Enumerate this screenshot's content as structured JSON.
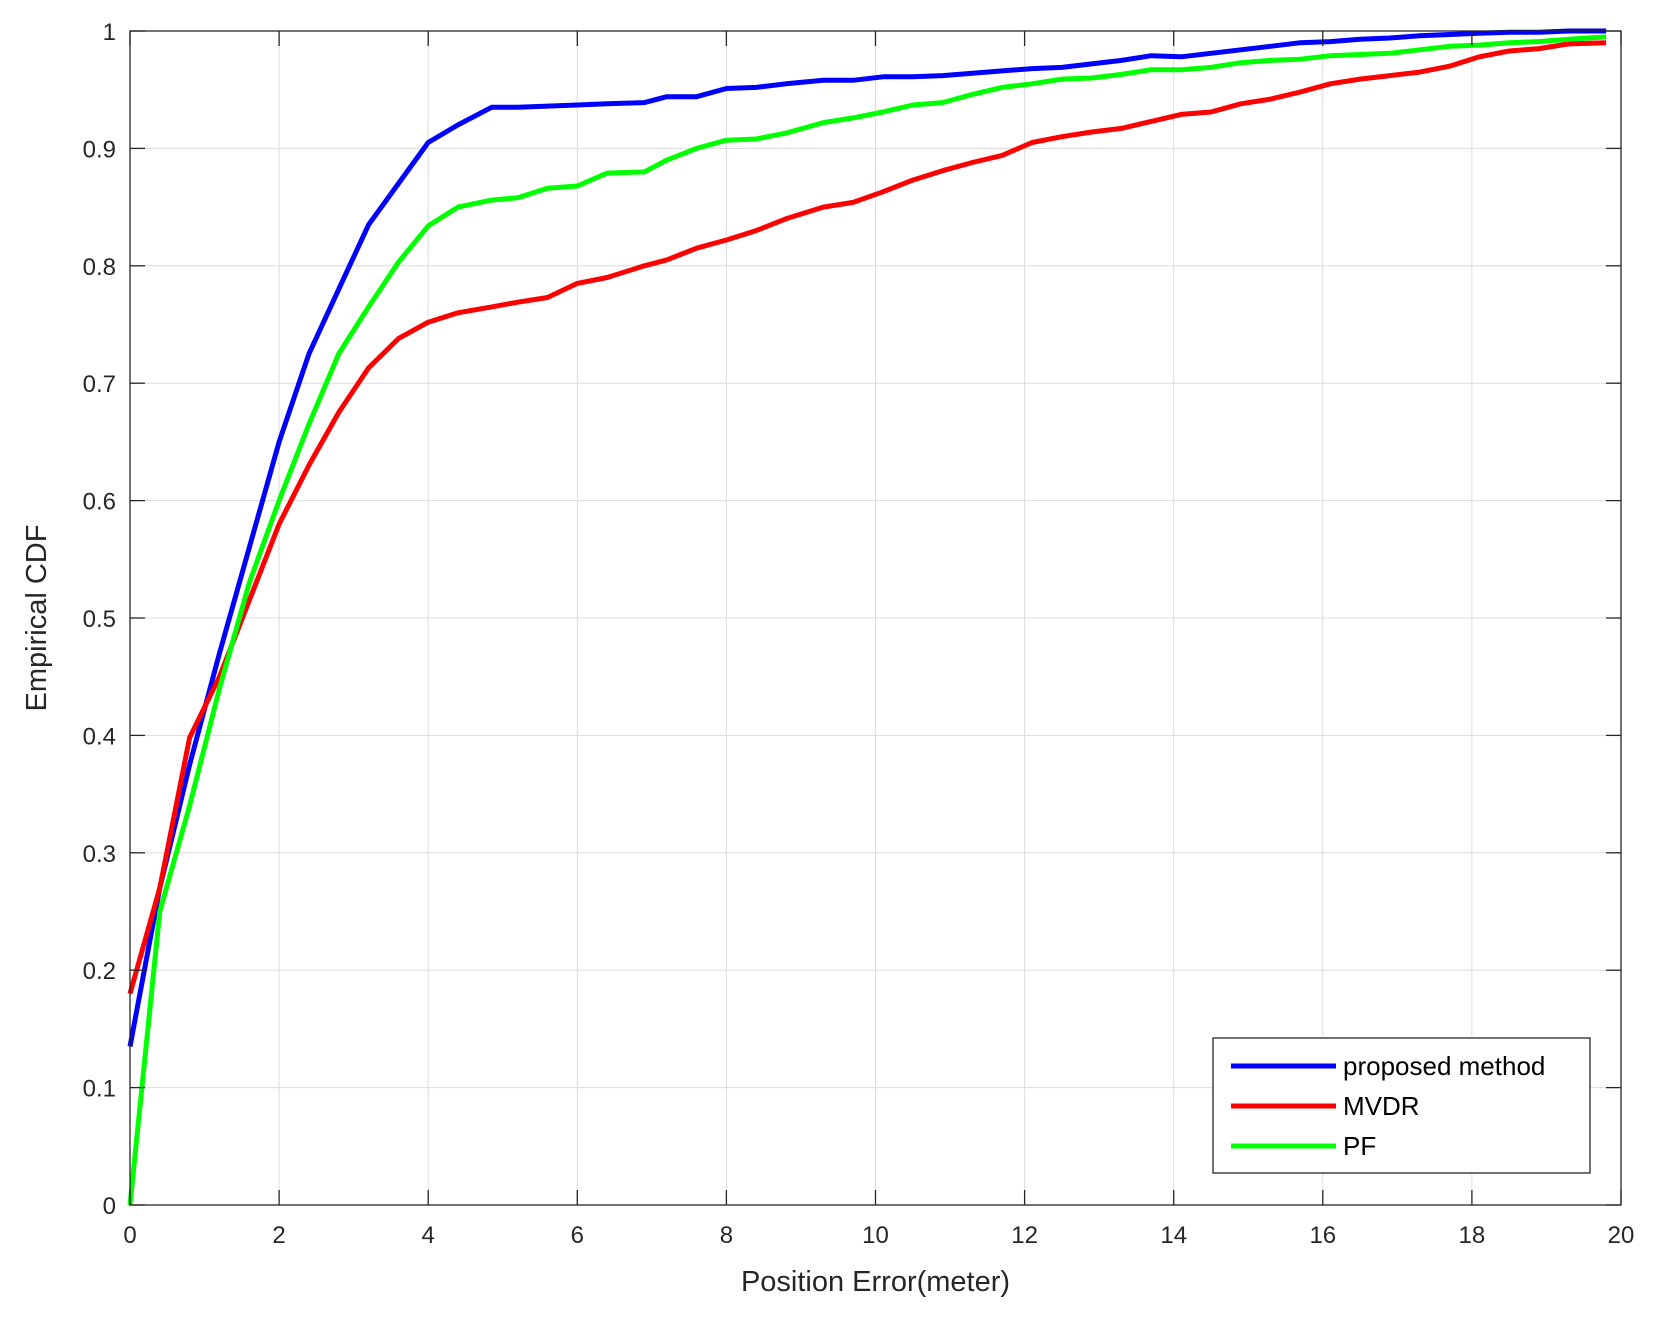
{
  "chart_data": {
    "type": "line",
    "xlabel": "Position Error(meter)",
    "ylabel": "Empirical CDF",
    "xlim": [
      0,
      20
    ],
    "ylim": [
      0,
      1
    ],
    "xticks": [
      "0",
      "2",
      "4",
      "6",
      "8",
      "10",
      "12",
      "14",
      "16",
      "18",
      "20"
    ],
    "yticks": [
      "0",
      "0.1",
      "0.2",
      "0.3",
      "0.4",
      "0.5",
      "0.6",
      "0.7",
      "0.8",
      "0.9",
      "1"
    ],
    "grid": true,
    "legend_position": "bottom-right",
    "series": [
      {
        "name": "proposed method",
        "color": "#0000ff",
        "x": [
          0,
          0.4,
          0.8,
          1.2,
          1.6,
          2.0,
          2.4,
          2.8,
          3.2,
          3.6,
          4.0,
          4.4,
          4.85,
          5.2,
          5.6,
          6.0,
          6.4,
          6.9,
          7.2,
          7.6,
          8.0,
          8.4,
          8.8,
          9.3,
          9.7,
          10.1,
          10.5,
          10.9,
          11.3,
          11.7,
          12.1,
          12.5,
          12.9,
          13.3,
          13.7,
          14.1,
          14.5,
          14.9,
          15.3,
          15.7,
          16.1,
          16.5,
          16.9,
          17.3,
          17.7,
          18.1,
          18.5,
          18.9,
          19.3,
          19.8
        ],
        "y": [
          0.135,
          0.27,
          0.375,
          0.47,
          0.56,
          0.65,
          0.725,
          0.78,
          0.835,
          0.87,
          0.905,
          0.92,
          0.935,
          0.935,
          0.936,
          0.937,
          0.938,
          0.939,
          0.944,
          0.944,
          0.951,
          0.952,
          0.955,
          0.958,
          0.958,
          0.961,
          0.961,
          0.962,
          0.964,
          0.966,
          0.968,
          0.969,
          0.972,
          0.975,
          0.979,
          0.978,
          0.981,
          0.984,
          0.987,
          0.99,
          0.991,
          0.993,
          0.994,
          0.996,
          0.997,
          0.998,
          0.999,
          0.999,
          1.0,
          1.0
        ]
      },
      {
        "name": "MVDR",
        "color": "#ff0000",
        "x": [
          0,
          0.4,
          0.8,
          1.2,
          1.6,
          2.0,
          2.4,
          2.8,
          3.2,
          3.6,
          4.0,
          4.4,
          4.85,
          5.2,
          5.6,
          6.0,
          6.4,
          6.9,
          7.2,
          7.6,
          8.0,
          8.4,
          8.8,
          9.3,
          9.7,
          10.1,
          10.5,
          10.9,
          11.3,
          11.7,
          12.1,
          12.5,
          12.9,
          13.3,
          13.7,
          14.1,
          14.5,
          14.9,
          15.3,
          15.7,
          16.1,
          16.5,
          16.9,
          17.3,
          17.7,
          18.1,
          18.5,
          18.9,
          19.3,
          19.8
        ],
        "y": [
          0.18,
          0.27,
          0.398,
          0.45,
          0.515,
          0.58,
          0.63,
          0.675,
          0.713,
          0.738,
          0.752,
          0.76,
          0.765,
          0.769,
          0.773,
          0.785,
          0.79,
          0.8,
          0.805,
          0.815,
          0.822,
          0.83,
          0.84,
          0.85,
          0.854,
          0.863,
          0.873,
          0.881,
          0.888,
          0.894,
          0.905,
          0.91,
          0.914,
          0.917,
          0.923,
          0.929,
          0.931,
          0.938,
          0.942,
          0.948,
          0.955,
          0.959,
          0.962,
          0.965,
          0.97,
          0.978,
          0.983,
          0.985,
          0.989,
          0.99
        ]
      },
      {
        "name": "PF",
        "color": "#00ff00",
        "x": [
          0,
          0.4,
          0.8,
          1.2,
          1.6,
          2.0,
          2.4,
          2.8,
          3.2,
          3.6,
          4.0,
          4.4,
          4.85,
          5.2,
          5.6,
          6.0,
          6.4,
          6.9,
          7.2,
          7.6,
          8.0,
          8.4,
          8.8,
          9.3,
          9.7,
          10.1,
          10.5,
          10.9,
          11.3,
          11.7,
          12.1,
          12.5,
          12.9,
          13.3,
          13.7,
          14.1,
          14.5,
          14.9,
          15.3,
          15.7,
          16.1,
          16.5,
          16.9,
          17.3,
          17.7,
          18.1,
          18.5,
          18.9,
          19.3,
          19.8
        ],
        "y": [
          0.0,
          0.25,
          0.34,
          0.44,
          0.53,
          0.6,
          0.665,
          0.725,
          0.765,
          0.803,
          0.834,
          0.85,
          0.856,
          0.858,
          0.866,
          0.868,
          0.879,
          0.88,
          0.89,
          0.9,
          0.907,
          0.908,
          0.913,
          0.922,
          0.926,
          0.931,
          0.937,
          0.939,
          0.946,
          0.952,
          0.955,
          0.959,
          0.96,
          0.963,
          0.967,
          0.967,
          0.969,
          0.973,
          0.975,
          0.976,
          0.979,
          0.98,
          0.981,
          0.984,
          0.987,
          0.988,
          0.99,
          0.991,
          0.993,
          0.995
        ]
      }
    ]
  }
}
